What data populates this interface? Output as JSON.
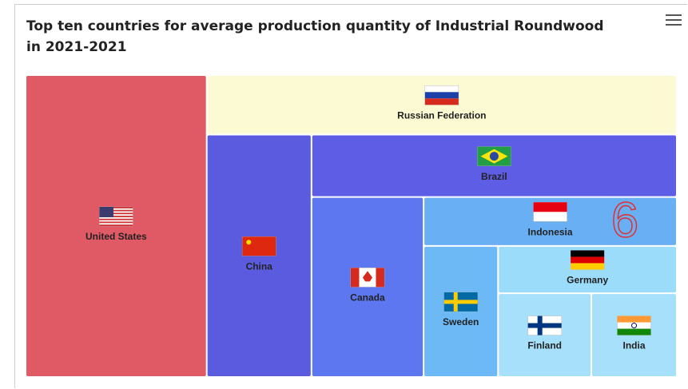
{
  "chart_data": {
    "type": "treemap",
    "title": "Top ten countries for average production quantity of Industrial Roundwood in 2021-2021",
    "categories": [
      "United States",
      "Russian Federation",
      "China",
      "Brazil",
      "Canada",
      "Indonesia",
      "Sweden",
      "Germany",
      "Finland",
      "India"
    ],
    "values": [
      84,
      43,
      39,
      35,
      31,
      19,
      15,
      13,
      12,
      11
    ],
    "colors": [
      "#e05a66",
      "#fcfad2",
      "#5b5be0",
      "#5d5de6",
      "#5c77ef",
      "#69aff4",
      "#6cb9f6",
      "#9cdcfb",
      "#a6e0fb",
      "#a6e0fb"
    ],
    "annotations": [
      "6"
    ]
  }
}
